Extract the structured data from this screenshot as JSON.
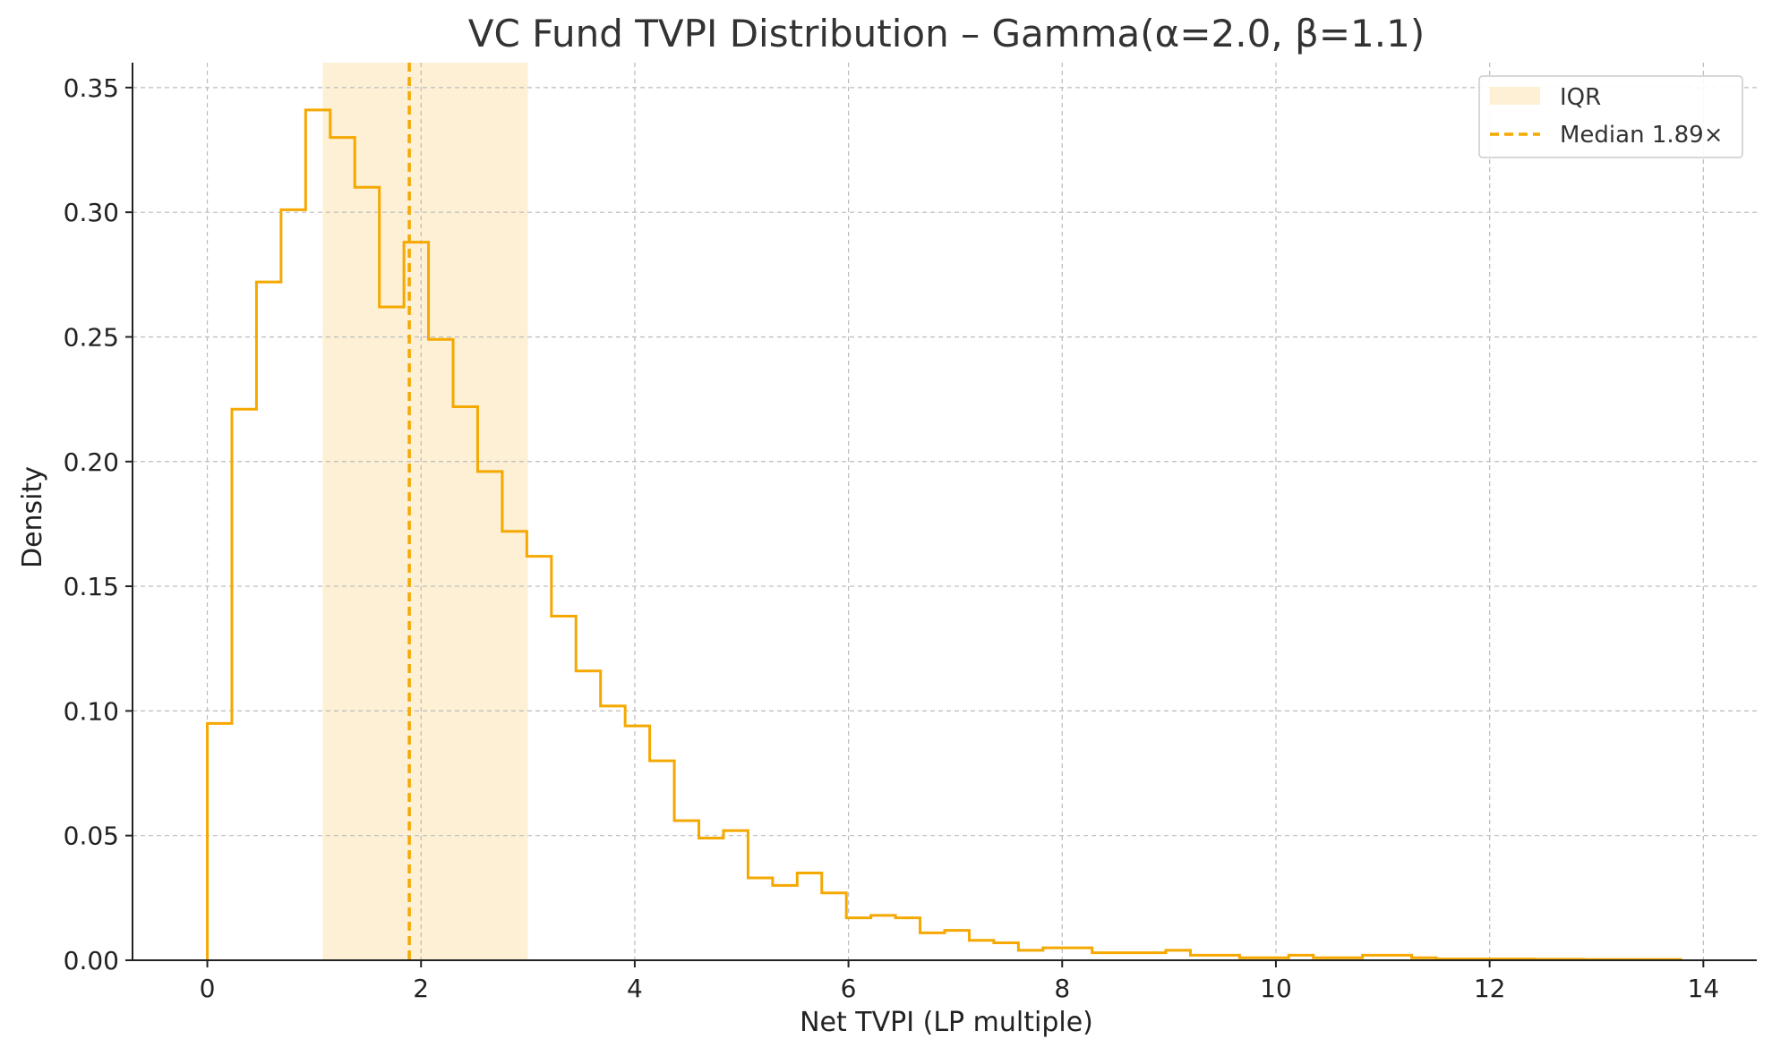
{
  "chart_data": {
    "type": "bar",
    "title": "VC Fund TVPI Distribution – Gamma(α=2.0, β=1.1)",
    "xlabel": "Net TVPI (LP multiple)",
    "ylabel": "Density",
    "xlim": [
      -0.7,
      14.5
    ],
    "ylim": [
      0,
      0.36
    ],
    "xticks": [
      0,
      2,
      4,
      6,
      8,
      10,
      12,
      14
    ],
    "xtick_labels": [
      "0",
      "2",
      "4",
      "6",
      "8",
      "10",
      "12",
      "14"
    ],
    "yticks": [
      0,
      0.05,
      0.1,
      0.15,
      0.2,
      0.25,
      0.3,
      0.35
    ],
    "ytick_labels": [
      "0.00",
      "0.05",
      "0.10",
      "0.15",
      "0.20",
      "0.25",
      "0.30",
      "0.35"
    ],
    "grid": true,
    "legend_position": "top-right",
    "bin_start": 0.0,
    "bin_width": 0.23,
    "series": [
      {
        "name": "Net TVPI",
        "style": "step",
        "color": "#F5A800",
        "values": [
          0.095,
          0.221,
          0.272,
          0.301,
          0.341,
          0.33,
          0.31,
          0.262,
          0.288,
          0.249,
          0.222,
          0.196,
          0.172,
          0.162,
          0.138,
          0.116,
          0.102,
          0.094,
          0.08,
          0.056,
          0.049,
          0.052,
          0.033,
          0.03,
          0.035,
          0.027,
          0.017,
          0.018,
          0.017,
          0.011,
          0.012,
          0.008,
          0.007,
          0.004,
          0.005,
          0.005,
          0.003,
          0.003,
          0.003,
          0.004,
          0.002,
          0.002,
          0.001,
          0.001,
          0.002,
          0.001,
          0.001,
          0.002,
          0.002,
          0.001,
          0.0005,
          0.0005,
          0.0005,
          0.0005,
          0.0004,
          0.0004,
          0.0003,
          0.0003,
          0.0003,
          0.0003
        ]
      }
    ],
    "iqr": {
      "label": "IQR",
      "start": 1.08,
      "end": 3.0,
      "color": "#FDF0D5"
    },
    "median": {
      "label": "Median 1.89×",
      "value": 1.89,
      "color": "#F5A800"
    },
    "colors": {
      "axis": "#222222",
      "grid": "#BBBBBB",
      "title": "#333333"
    }
  }
}
